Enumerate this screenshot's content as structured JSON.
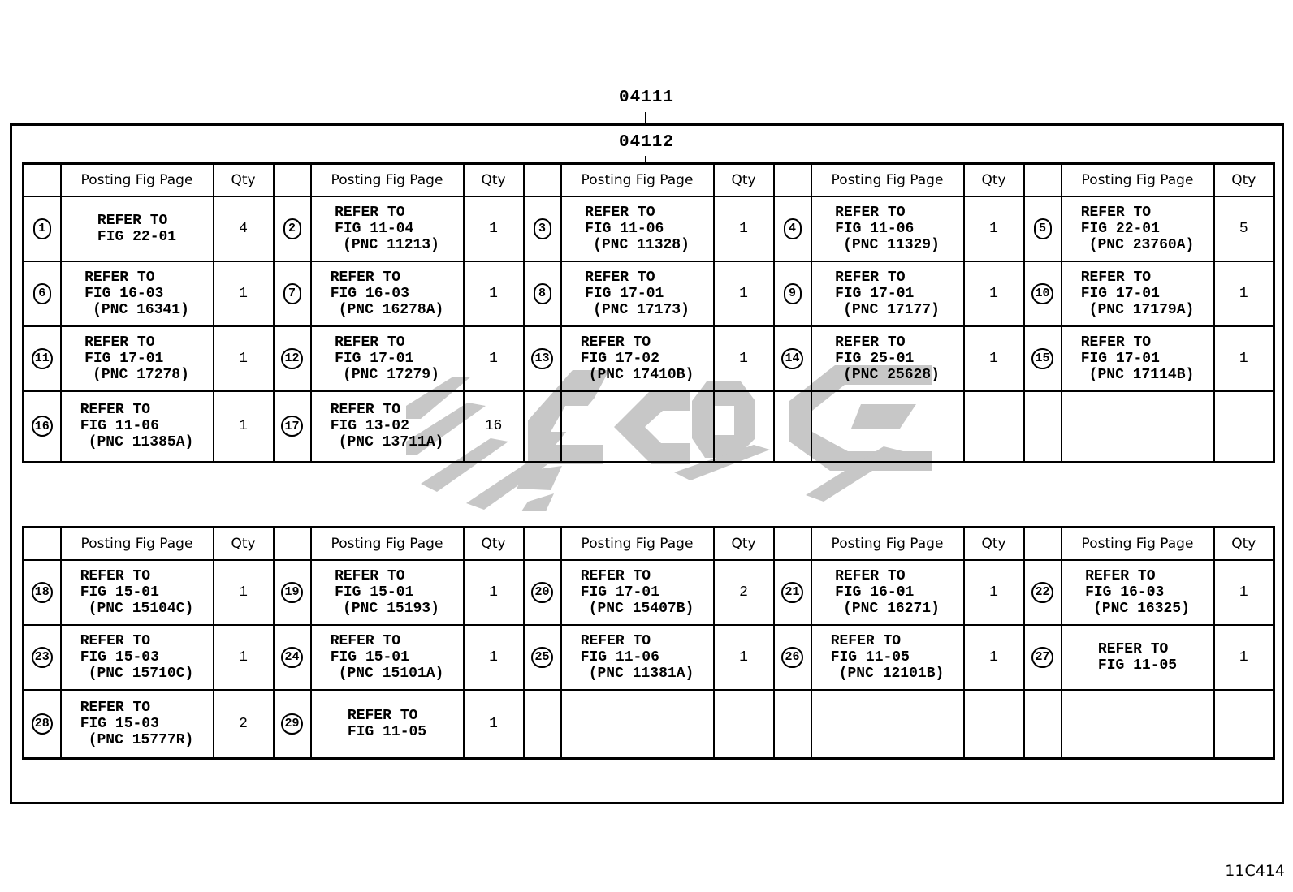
{
  "codes": {
    "top_code": "04111",
    "sub_code": "04112",
    "doc_code": "11C414"
  },
  "labels": {
    "refer_to": "REFER TO",
    "posting_fig_page": "Posting Fig Page",
    "qty": "Qty"
  },
  "colors": {
    "line": "#000000",
    "background": "#ffffff",
    "watermark": "#c7c7c7"
  },
  "tables": [
    {
      "rows": [
        [
          {
            "n": "1",
            "fig": "FIG 22-01",
            "pnc": null,
            "qty": "4"
          },
          {
            "n": "2",
            "fig": "FIG 11-04",
            "pnc": "(PNC 11213)",
            "qty": "1"
          },
          {
            "n": "3",
            "fig": "FIG 11-06",
            "pnc": "(PNC 11328)",
            "qty": "1"
          },
          {
            "n": "4",
            "fig": "FIG 11-06",
            "pnc": "(PNC 11329)",
            "qty": "1"
          },
          {
            "n": "5",
            "fig": "FIG 22-01",
            "pnc": "(PNC 23760A)",
            "qty": "5"
          }
        ],
        [
          {
            "n": "6",
            "fig": "FIG 16-03",
            "pnc": "(PNC 16341)",
            "qty": "1"
          },
          {
            "n": "7",
            "fig": "FIG 16-03",
            "pnc": "(PNC 16278A)",
            "qty": "1"
          },
          {
            "n": "8",
            "fig": "FIG 17-01",
            "pnc": "(PNC 17173)",
            "qty": "1"
          },
          {
            "n": "9",
            "fig": "FIG 17-01",
            "pnc": "(PNC 17177)",
            "qty": "1"
          },
          {
            "n": "10",
            "fig": "FIG 17-01",
            "pnc": "(PNC 17179A)",
            "qty": "1"
          }
        ],
        [
          {
            "n": "11",
            "fig": "FIG 17-01",
            "pnc": "(PNC 17278)",
            "qty": "1"
          },
          {
            "n": "12",
            "fig": "FIG 17-01",
            "pnc": "(PNC 17279)",
            "qty": "1"
          },
          {
            "n": "13",
            "fig": "FIG 17-02",
            "pnc": "(PNC 17410B)",
            "qty": "1"
          },
          {
            "n": "14",
            "fig": "FIG 25-01",
            "pnc": "(PNC 25628)",
            "qty": "1"
          },
          {
            "n": "15",
            "fig": "FIG 17-01",
            "pnc": "(PNC 17114B)",
            "qty": "1"
          }
        ],
        [
          {
            "n": "16",
            "fig": "FIG 11-06",
            "pnc": "(PNC 11385A)",
            "qty": "1"
          },
          {
            "n": "17",
            "fig": "FIG 13-02",
            "pnc": "(PNC 13711A)",
            "qty": "16"
          },
          null,
          null,
          null
        ]
      ]
    },
    {
      "rows": [
        [
          {
            "n": "18",
            "fig": "FIG 15-01",
            "pnc": "(PNC 15104C)",
            "qty": "1"
          },
          {
            "n": "19",
            "fig": "FIG 15-01",
            "pnc": "(PNC 15193)",
            "qty": "1"
          },
          {
            "n": "20",
            "fig": "FIG 17-01",
            "pnc": "(PNC 15407B)",
            "qty": "2"
          },
          {
            "n": "21",
            "fig": "FIG 16-01",
            "pnc": "(PNC 16271)",
            "qty": "1"
          },
          {
            "n": "22",
            "fig": "FIG 16-03",
            "pnc": "(PNC 16325)",
            "qty": "1"
          }
        ],
        [
          {
            "n": "23",
            "fig": "FIG 15-03",
            "pnc": "(PNC 15710C)",
            "qty": "1"
          },
          {
            "n": "24",
            "fig": "FIG 15-01",
            "pnc": "(PNC 15101A)",
            "qty": "1"
          },
          {
            "n": "25",
            "fig": "FIG 11-06",
            "pnc": "(PNC 11381A)",
            "qty": "1"
          },
          {
            "n": "26",
            "fig": "FIG 11-05",
            "pnc": "(PNC 12101B)",
            "qty": "1"
          },
          {
            "n": "27",
            "fig": "FIG 11-05",
            "pnc": null,
            "qty": "1"
          }
        ],
        [
          {
            "n": "28",
            "fig": "FIG 15-03",
            "pnc": "(PNC 15777R)",
            "qty": "2"
          },
          {
            "n": "29",
            "fig": "FIG 11-05",
            "pnc": null,
            "qty": "1"
          },
          null,
          null,
          null
        ]
      ]
    }
  ]
}
